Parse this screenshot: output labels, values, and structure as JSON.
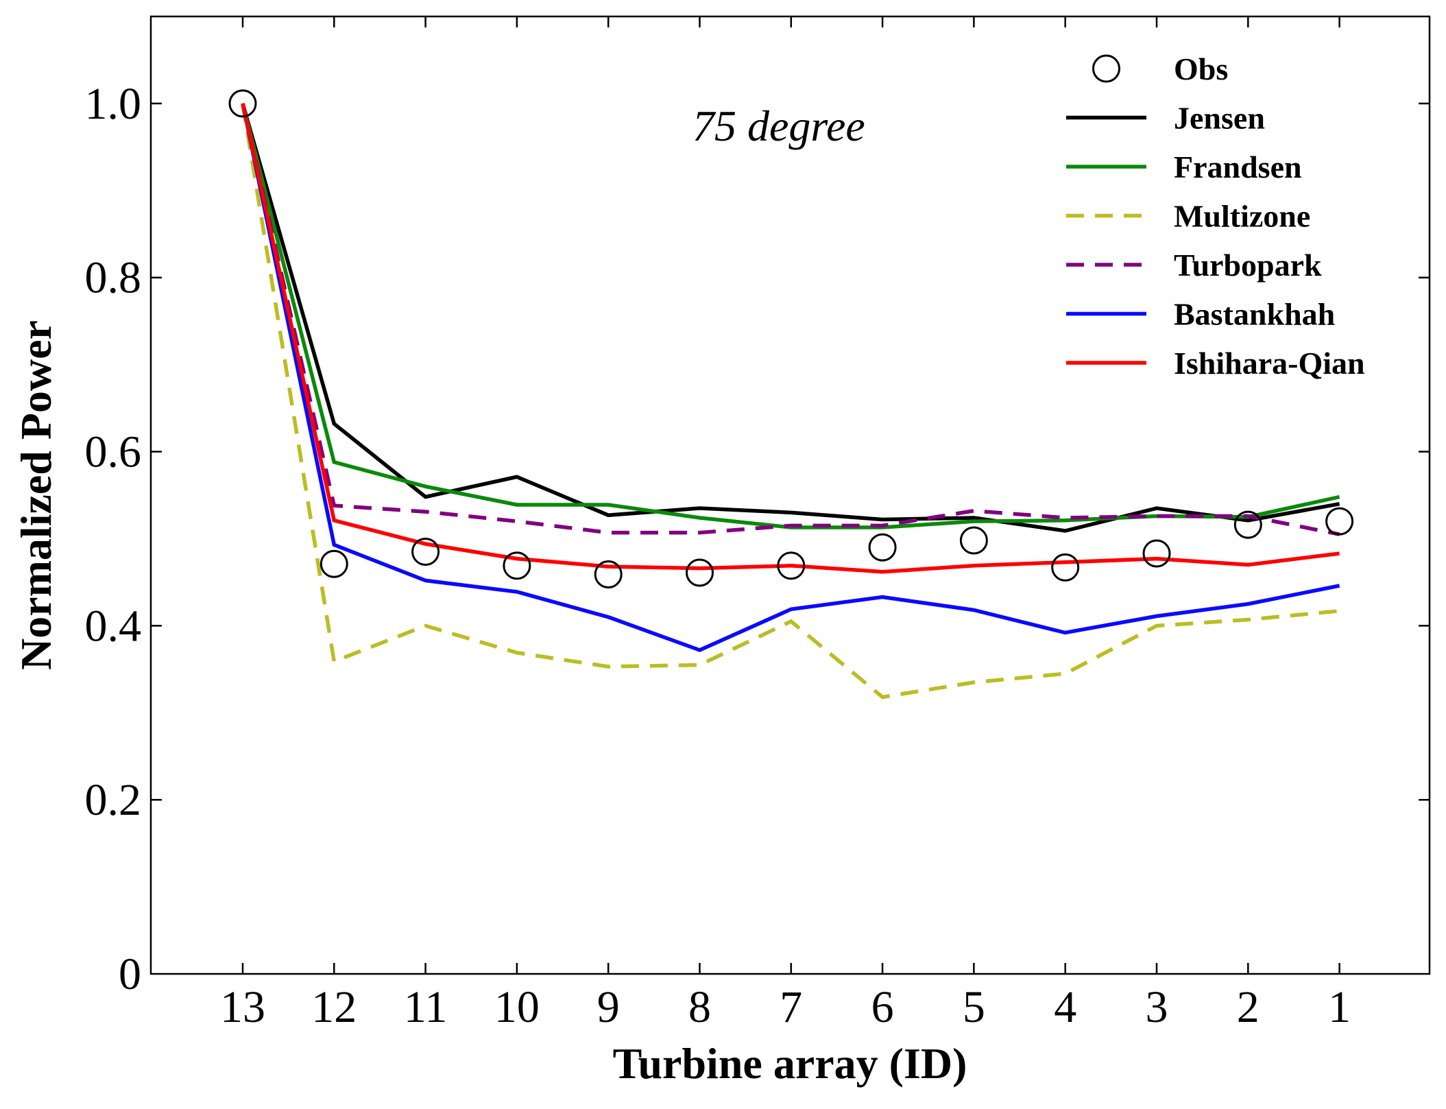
{
  "chart_data": {
    "type": "line",
    "xlabel": "Turbine array (ID)",
    "ylabel": "Normalized Power",
    "annotation": "75 degree",
    "x": [
      "13",
      "12",
      "11",
      "10",
      "9",
      "8",
      "7",
      "6",
      "5",
      "4",
      "3",
      "2",
      "1"
    ],
    "ylim": [
      0,
      1.1
    ],
    "yticks": [
      0,
      0.2,
      0.4,
      0.6,
      0.8,
      1.0
    ],
    "ytick_labels": [
      "0",
      "0.2",
      "0.4",
      "0.6",
      "0.8",
      "1.0"
    ],
    "grid": false,
    "legend_position": "top-right",
    "series": [
      {
        "name": "Obs",
        "style": "marker",
        "color": "#000000",
        "values": [
          1.0,
          0.471,
          0.485,
          0.469,
          0.459,
          0.461,
          0.469,
          0.49,
          0.498,
          0.467,
          0.483,
          0.516,
          0.52
        ]
      },
      {
        "name": "Jensen",
        "style": "solid",
        "color": "#000000",
        "values": [
          1.0,
          0.632,
          0.548,
          0.571,
          0.527,
          0.535,
          0.53,
          0.522,
          0.524,
          0.509,
          0.535,
          0.521,
          0.54
        ]
      },
      {
        "name": "Frandsen",
        "style": "solid",
        "color": "#0a8a0a",
        "values": [
          1.0,
          0.588,
          0.56,
          0.539,
          0.539,
          0.524,
          0.513,
          0.513,
          0.52,
          0.521,
          0.526,
          0.525,
          0.548
        ]
      },
      {
        "name": "Multizone",
        "style": "dashed",
        "color": "#bcbd22",
        "values": [
          1.0,
          0.359,
          0.4,
          0.369,
          0.353,
          0.355,
          0.405,
          0.318,
          0.335,
          0.345,
          0.4,
          0.407,
          0.417
        ]
      },
      {
        "name": "Turbopark",
        "style": "dashed",
        "color": "#800080",
        "values": [
          1.0,
          0.538,
          0.531,
          0.52,
          0.507,
          0.507,
          0.515,
          0.515,
          0.532,
          0.524,
          0.526,
          0.526,
          0.505
        ]
      },
      {
        "name": "Bastankhah",
        "style": "solid",
        "color": "#0a0aff",
        "values": [
          1.0,
          0.493,
          0.452,
          0.439,
          0.41,
          0.372,
          0.419,
          0.433,
          0.418,
          0.392,
          0.411,
          0.425,
          0.446
        ]
      },
      {
        "name": "Ishihara-Qian",
        "style": "solid",
        "color": "#ff0000",
        "values": [
          1.0,
          0.521,
          0.494,
          0.477,
          0.468,
          0.466,
          0.469,
          0.462,
          0.469,
          0.473,
          0.477,
          0.47,
          0.483
        ]
      }
    ]
  }
}
